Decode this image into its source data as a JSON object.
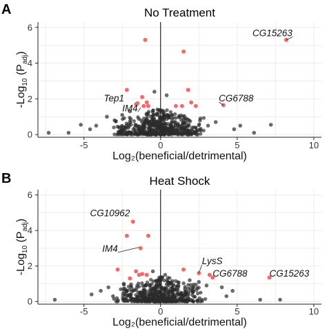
{
  "chart_data": [
    {
      "type": "scatter",
      "panel_label": "A",
      "title": "No Treatment",
      "xlabel": "Log₂(beneficial/detrimental)",
      "ylabel_main": "-Log",
      "ylabel_sub1": "10",
      "ylabel_mid": " (P",
      "ylabel_sub2": "adj",
      "ylabel_end": ")",
      "xlim": [
        -8,
        10.5
      ],
      "ylim": [
        -0.15,
        6.3
      ],
      "xticks": [
        -5,
        0,
        5,
        10
      ],
      "yticks": [
        0,
        2,
        4,
        6
      ],
      "grid": true,
      "colors": {
        "nonsignificant": "#2b2b2b",
        "significant": "#f26b6b"
      },
      "significant_points": [
        [
          -1.0,
          5.3
        ],
        [
          1.5,
          4.65
        ],
        [
          8.2,
          5.3
        ],
        [
          -2.2,
          2.5
        ],
        [
          -1.2,
          2.1
        ],
        [
          -0.9,
          1.8
        ],
        [
          -1.1,
          1.6
        ],
        [
          -1.6,
          1.7
        ],
        [
          -0.8,
          1.6
        ],
        [
          1.8,
          2.5
        ],
        [
          2.0,
          1.8
        ],
        [
          1.0,
          1.6
        ],
        [
          1.4,
          1.6
        ],
        [
          2.3,
          1.6
        ],
        [
          4.1,
          1.65
        ],
        [
          -1.5,
          1.75
        ]
      ],
      "notable_nonsig_points": [
        [
          -7.3,
          0.1
        ],
        [
          -5.2,
          0.55
        ],
        [
          -6.0,
          0.1
        ],
        [
          -3.5,
          1.0
        ],
        [
          -4.2,
          0.5
        ],
        [
          -4.6,
          0.3
        ],
        [
          -3.0,
          0.8
        ],
        [
          6.1,
          0.1
        ],
        [
          7.2,
          0.55
        ],
        [
          5.2,
          0.5
        ],
        [
          4.8,
          0.3
        ],
        [
          3.6,
          0.7
        ],
        [
          -0.4,
          2.4
        ],
        [
          0.4,
          2.2
        ],
        [
          -2.5,
          1.1
        ],
        [
          2.6,
          0.9
        ],
        [
          3.1,
          0.5
        ],
        [
          -2.0,
          1.3
        ]
      ],
      "labels": [
        {
          "text": "CG15263",
          "x": 6.0,
          "y": 5.5,
          "px": 8.2,
          "py": 5.3
        },
        {
          "text": "CG6788",
          "x": 3.8,
          "y": 1.85,
          "px": 4.1,
          "py": 1.65
        },
        {
          "text": "Tep1",
          "x": -3.7,
          "y": 1.85,
          "px": -2.2,
          "py": 1.85
        },
        {
          "text": "IM4",
          "x": -2.5,
          "y": 1.3,
          "px": -1.3,
          "py": 1.5
        }
      ]
    },
    {
      "type": "scatter",
      "panel_label": "B",
      "title": "Heat Shock",
      "xlabel": "Log₂(beneficial/detrimental)",
      "ylabel_main": "-Log",
      "ylabel_sub1": "10",
      "ylabel_mid": " (P",
      "ylabel_sub2": "adj",
      "ylabel_end": ")",
      "xlim": [
        -8,
        10.5
      ],
      "ylim": [
        -0.15,
        6.3
      ],
      "xticks": [
        -5,
        0,
        5,
        10
      ],
      "yticks": [
        0,
        2,
        4,
        6
      ],
      "grid": true,
      "colors": {
        "nonsignificant": "#2b2b2b",
        "significant": "#f26b6b"
      },
      "significant_points": [
        [
          -1.8,
          4.5
        ],
        [
          -1.3,
          3.0
        ],
        [
          -2.2,
          3.7
        ],
        [
          -0.8,
          3.7
        ],
        [
          -2.8,
          1.8
        ],
        [
          -1.6,
          1.7
        ],
        [
          -1.4,
          1.5
        ],
        [
          -1.2,
          1.55
        ],
        [
          -0.9,
          1.5
        ],
        [
          -2.0,
          1.3
        ],
        [
          1.5,
          1.8
        ],
        [
          2.5,
          1.6
        ],
        [
          3.4,
          1.35
        ],
        [
          7.1,
          1.35
        ],
        [
          3.2,
          1.5
        ]
      ],
      "notable_nonsig_points": [
        [
          -6.9,
          0.1
        ],
        [
          -4.5,
          0.4
        ],
        [
          -3.9,
          0.6
        ],
        [
          -3.4,
          0.8
        ],
        [
          -3.1,
          0.3
        ],
        [
          6.5,
          0.1
        ],
        [
          7.8,
          0.1
        ],
        [
          4.7,
          0.6
        ],
        [
          4.3,
          0.3
        ],
        [
          4.0,
          0.8
        ],
        [
          3.0,
          0.9
        ],
        [
          -2.4,
          1.0
        ],
        [
          2.5,
          1.1
        ],
        [
          1.9,
          1.2
        ],
        [
          -0.5,
          1.7
        ],
        [
          0.3,
          1.5
        ]
      ],
      "labels": [
        {
          "text": "CG10962",
          "x": -4.6,
          "y": 4.8,
          "px": -1.8,
          "py": 4.6
        },
        {
          "text": "IM4",
          "x": -3.8,
          "y": 2.8,
          "px": -1.4,
          "py": 3.05
        },
        {
          "text": "LysS",
          "x": 2.7,
          "y": 2.1,
          "px": 2.5,
          "py": 1.6
        },
        {
          "text": "CG6788",
          "x": 3.4,
          "y": 1.4,
          "px": 3.3,
          "py": 1.35
        },
        {
          "text": "CG15263",
          "x": 7.1,
          "y": 1.4,
          "px": 7.1,
          "py": 1.35
        }
      ]
    }
  ]
}
